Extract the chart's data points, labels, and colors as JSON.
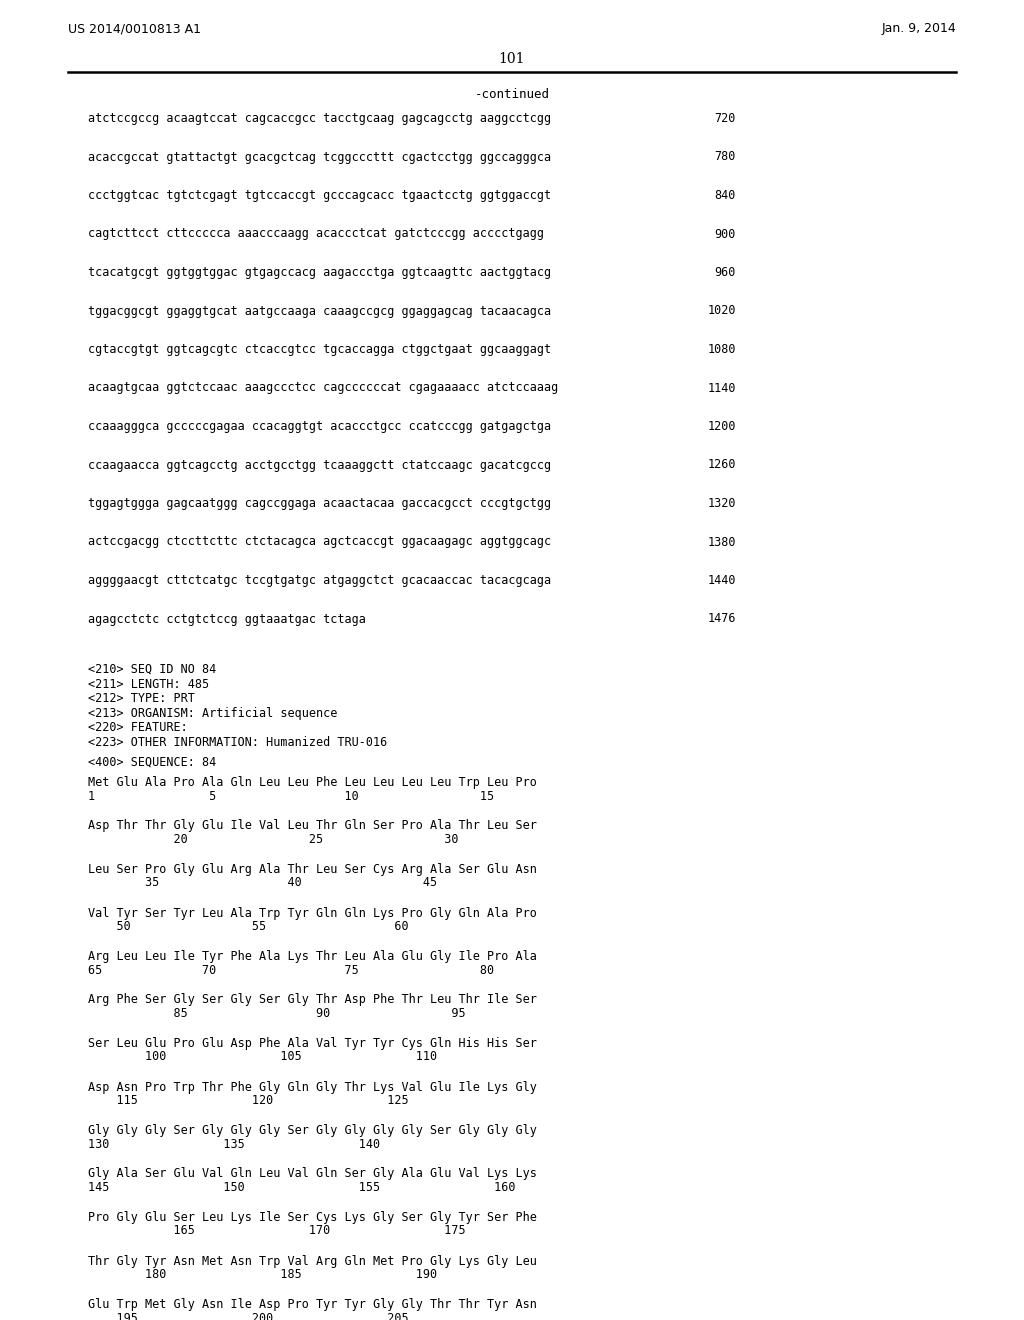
{
  "header_left": "US 2014/0010813 A1",
  "header_right": "Jan. 9, 2014",
  "page_number": "101",
  "continued_label": "-continued",
  "background_color": "#ffffff",
  "text_color": "#000000",
  "dna_lines": [
    [
      "atctccgccg acaagtccat cagcaccgcc tacctgcaag gagcagcctg aaggcctcgg",
      "720"
    ],
    [
      "acaccgccat gtattactgt gcacgctcag tcggcccttt cgactcctgg ggccagggca",
      "780"
    ],
    [
      "ccctggtcac tgtctcgagt tgtccaccgt gcccagcacc tgaactcctg ggtggaccgt",
      "840"
    ],
    [
      "cagtcttcct cttccccca aaacccaagg acaccctcat gatctcccgg acccctgagg",
      "900"
    ],
    [
      "tcacatgcgt ggtggtggac gtgagccacg aagaccctga ggtcaagttc aactggtacg",
      "960"
    ],
    [
      "tggacggcgt ggaggtgcat aatgccaaga caaagccgcg ggaggagcag tacaacagca",
      "1020"
    ],
    [
      "cgtaccgtgt ggtcagcgtc ctcaccgtcc tgcaccagga ctggctgaat ggcaaggagt",
      "1080"
    ],
    [
      "acaagtgcaa ggtctccaac aaagccctcc cagccccccat cgagaaaacc atctccaaag",
      "1140"
    ],
    [
      "ccaaagggca gcccccgagaa ccacaggtgt acaccctgcc ccatcccgg gatgagctga",
      "1200"
    ],
    [
      "ccaagaacca ggtcagcctg acctgcctgg tcaaaggctt ctatccaagc gacatcgccg",
      "1260"
    ],
    [
      "tggagtggga gagcaatggg cagccggaga acaactacaa gaccacgcct cccgtgctgg",
      "1320"
    ],
    [
      "actccgacgg ctccttcttc ctctacagca agctcaccgt ggacaagagc aggtggcagc",
      "1380"
    ],
    [
      "aggggaacgt cttctcatgc tccgtgatgc atgaggctct gcacaaccac tacacgcaga",
      "1440"
    ],
    [
      "agagcctctc cctgtctccg ggtaaatgac tctaga",
      "1476"
    ]
  ],
  "metadata_lines": [
    "<210> SEQ ID NO 84",
    "<211> LENGTH: 485",
    "<212> TYPE: PRT",
    "<213> ORGANISM: Artificial sequence",
    "<220> FEATURE:",
    "<223> OTHER INFORMATION: Humanized TRU-016"
  ],
  "sequence_label": "<400> SEQUENCE: 84",
  "protein_blocks": [
    {
      "seq": "Met Glu Ala Pro Ala Gln Leu Leu Phe Leu Leu Leu Leu Trp Leu Pro",
      "nums": "1                5                  10                 15"
    },
    {
      "seq": "Asp Thr Thr Gly Glu Ile Val Leu Thr Gln Ser Pro Ala Thr Leu Ser",
      "nums": "            20                 25                 30"
    },
    {
      "seq": "Leu Ser Pro Gly Glu Arg Ala Thr Leu Ser Cys Arg Ala Ser Glu Asn",
      "nums": "        35                  40                 45"
    },
    {
      "seq": "Val Tyr Ser Tyr Leu Ala Trp Tyr Gln Gln Lys Pro Gly Gln Ala Pro",
      "nums": "    50                 55                  60"
    },
    {
      "seq": "Arg Leu Leu Ile Tyr Phe Ala Lys Thr Leu Ala Glu Gly Ile Pro Ala",
      "nums": "65              70                  75                 80"
    },
    {
      "seq": "Arg Phe Ser Gly Ser Gly Ser Gly Thr Asp Phe Thr Leu Thr Ile Ser",
      "nums": "            85                  90                 95"
    },
    {
      "seq": "Ser Leu Glu Pro Glu Asp Phe Ala Val Tyr Tyr Cys Gln His His Ser",
      "nums": "        100                105                110"
    },
    {
      "seq": "Asp Asn Pro Trp Thr Phe Gly Gln Gly Thr Lys Val Glu Ile Lys Gly",
      "nums": "    115                120                125"
    },
    {
      "seq": "Gly Gly Gly Ser Gly Gly Gly Ser Gly Gly Gly Gly Ser Gly Gly Gly",
      "nums": "130                135                140"
    },
    {
      "seq": "Gly Ala Ser Glu Val Gln Leu Val Gln Ser Gly Ala Glu Val Lys Lys",
      "nums": "145                150                155                160"
    },
    {
      "seq": "Pro Gly Glu Ser Leu Lys Ile Ser Cys Lys Gly Ser Gly Tyr Ser Phe",
      "nums": "            165                170                175"
    },
    {
      "seq": "Thr Gly Tyr Asn Met Asn Trp Val Arg Gln Met Pro Gly Lys Gly Leu",
      "nums": "        180                185                190"
    },
    {
      "seq": "Glu Trp Met Gly Asn Ile Asp Pro Tyr Tyr Gly Gly Thr Thr Tyr Asn",
      "nums": "    195                200                205"
    }
  ]
}
